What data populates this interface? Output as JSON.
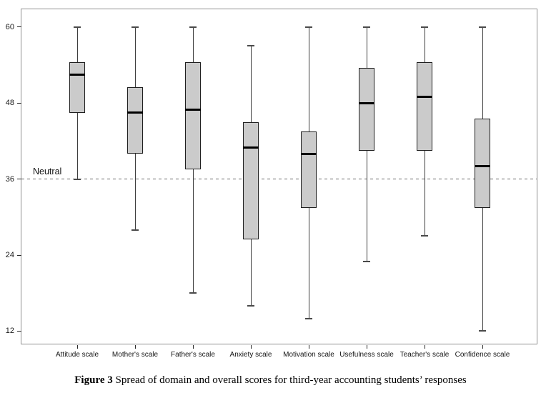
{
  "figure": {
    "caption_label": "Figure 3",
    "caption_text": " Spread of domain and overall scores for third-year accounting students’ responses"
  },
  "chart_data": {
    "type": "boxplot",
    "title": "",
    "xlabel": "",
    "ylabel": "",
    "yticks": [
      60,
      48,
      36,
      24,
      12
    ],
    "ylim": [
      9.8,
      62.8
    ],
    "grid": false,
    "legend": "none",
    "reference_line": {
      "value": 36,
      "label": "Neutral",
      "style": "dashed"
    },
    "categories": [
      "Attitude scale",
      "Mother's scale",
      "Father's scale",
      "Anxiety scale",
      "Motivation scale",
      "Usefulness scale",
      "Teacher's scale",
      "Confidence scale"
    ],
    "boxes": [
      {
        "label": "Attitude scale",
        "low": 36,
        "q1": 46.5,
        "median": 52.5,
        "q3": 54.5,
        "high": 60
      },
      {
        "label": "Mother's scale",
        "low": 28,
        "q1": 40.0,
        "median": 46.5,
        "q3": 50.5,
        "high": 60
      },
      {
        "label": "Father's scale",
        "low": 18,
        "q1": 37.5,
        "median": 47.0,
        "q3": 54.5,
        "high": 60
      },
      {
        "label": "Anxiety scale",
        "low": 16,
        "q1": 26.5,
        "median": 41.0,
        "q3": 45.0,
        "high": 57
      },
      {
        "label": "Motivation scale",
        "low": 14,
        "q1": 31.5,
        "median": 40.0,
        "q3": 43.5,
        "high": 60
      },
      {
        "label": "Usefulness scale",
        "low": 23,
        "q1": 40.5,
        "median": 48.0,
        "q3": 53.5,
        "high": 60
      },
      {
        "label": "Teacher's scale",
        "low": 27,
        "q1": 40.5,
        "median": 49.0,
        "q3": 54.5,
        "high": 60
      },
      {
        "label": "Confidence scale",
        "low": 12,
        "q1": 31.5,
        "median": 38.0,
        "q3": 45.5,
        "high": 60
      }
    ]
  },
  "colors": {
    "box_fill": "#cbcbcb",
    "box_border": "#1f1f1f",
    "median": "#000000",
    "whisker": "#3d3d3d",
    "reference_line": "#666666",
    "plot_border": "#909090",
    "text": "#1a1a1a"
  }
}
